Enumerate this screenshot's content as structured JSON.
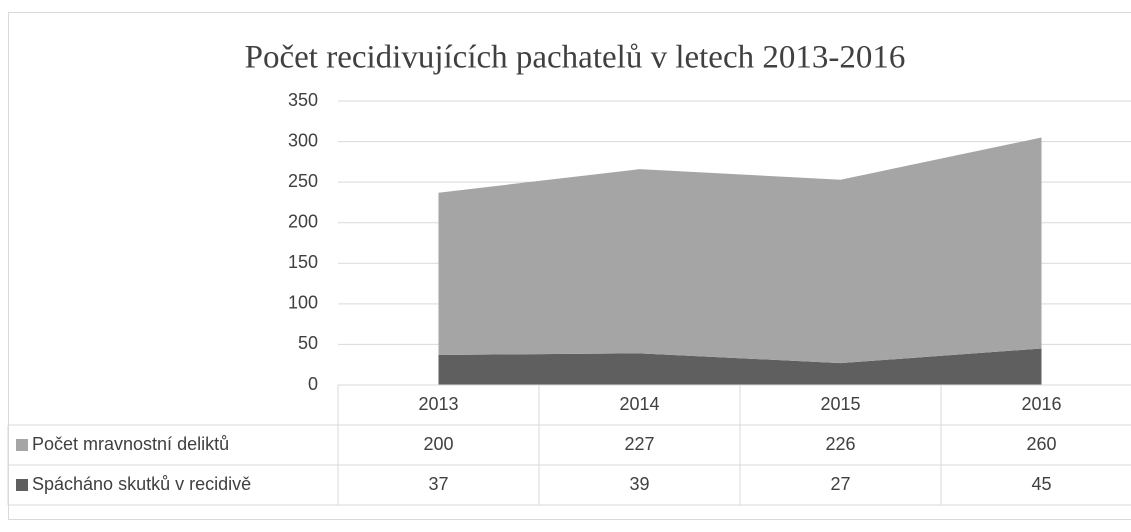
{
  "chart_data": {
    "type": "stacked_area",
    "title": "Počet recidivujících pachatelů v letech 2013-2016",
    "categories": [
      "2013",
      "2014",
      "2015",
      "2016"
    ],
    "series": [
      {
        "name": "Počet mravnostní deliktů",
        "color": "#a5a5a5",
        "values": [
          200,
          227,
          226,
          260
        ]
      },
      {
        "name": "Spácháno skutků v recidivě",
        "color": "#5f5f5f",
        "values": [
          37,
          39,
          27,
          45
        ]
      }
    ],
    "ylim": [
      0,
      350
    ],
    "yticks": [
      0,
      50,
      100,
      150,
      200,
      250,
      300,
      350
    ],
    "grid": true
  }
}
